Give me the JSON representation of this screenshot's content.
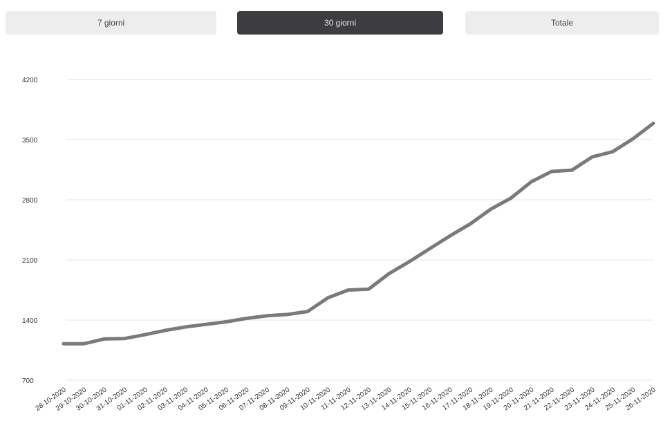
{
  "tabs": [
    {
      "label": "7 giorni",
      "active": false
    },
    {
      "label": "30 giorni",
      "active": true
    },
    {
      "label": "Totale",
      "active": false
    }
  ],
  "chart_data": {
    "type": "line",
    "title": "",
    "xlabel": "",
    "ylabel": "",
    "ylim": [
      700,
      4200
    ],
    "yticks": [
      700,
      1400,
      2100,
      2800,
      3500,
      4200
    ],
    "grid": true,
    "line_color": "#7a7a7a",
    "grid_color": "#e6e6e6",
    "x": [
      "28-10-2020",
      "29-10-2020",
      "30-10-2020",
      "31-10-2020",
      "01-11-2020",
      "02-11-2020",
      "03-11-2020",
      "04-11-2020",
      "05-11-2020",
      "06-11-2020",
      "07-11-2020",
      "08-11-2020",
      "09-11-2020",
      "10-11-2020",
      "11-11-2020",
      "12-11-2020",
      "13-11-2020",
      "14-11-2020",
      "15-11-2020",
      "16-11-2020",
      "17-11-2020",
      "18-11-2020",
      "19-11-2020",
      "20-11-2020",
      "21-11-2020",
      "22-11-2020",
      "23-11-2020",
      "24-11-2020",
      "25-11-2020",
      "26-11-2020"
    ],
    "series": [
      {
        "values": [
          1125,
          1125,
          1180,
          1185,
          1230,
          1280,
          1320,
          1350,
          1380,
          1420,
          1450,
          1465,
          1500,
          1660,
          1750,
          1760,
          1940,
          2080,
          2230,
          2380,
          2520,
          2690,
          2820,
          3010,
          3130,
          3145,
          3300,
          3360,
          3510,
          3690
        ]
      }
    ]
  }
}
